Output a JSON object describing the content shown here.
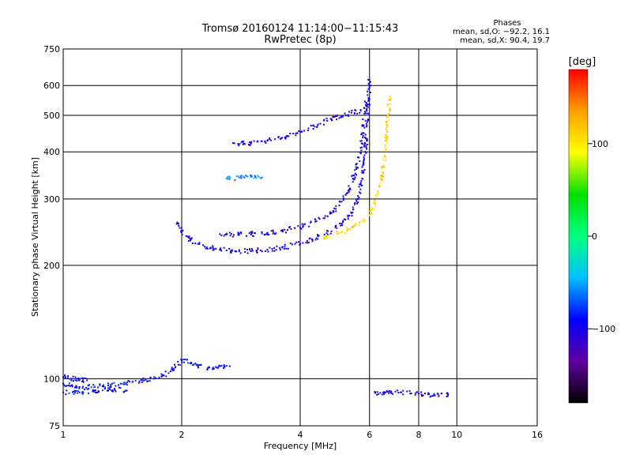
{
  "chart_data": {
    "type": "scatter",
    "title_line1": "Tromsø 20160124 11:14:00−11:15:43",
    "title_line2": "RwPretec (8p)",
    "xlabel": "Frequency [MHz]",
    "ylabel": "Stationary phase Virtual Height [km]",
    "x_scale": "log",
    "y_scale": "log",
    "xlim": [
      1,
      16
    ],
    "ylim": [
      75,
      750
    ],
    "x_ticks": [
      1,
      2,
      4,
      6,
      8,
      10,
      16
    ],
    "x_tick_labels": [
      "1",
      "2",
      "4",
      "6",
      "8",
      "10",
      "16"
    ],
    "y_ticks": [
      75,
      100,
      200,
      300,
      400,
      500,
      600,
      750
    ],
    "y_tick_labels": [
      "75",
      "100",
      "200",
      "300",
      "400",
      "500",
      "600",
      "750"
    ],
    "grid": true,
    "phase_box": {
      "title": "Phases",
      "line_o": "mean, sd,O: −92.2, 16.1",
      "line_x": "mean, sd,X:  90.4, 19.7"
    },
    "colorbar": {
      "label": "[deg]",
      "range": [
        -180,
        180
      ],
      "ticks": [
        100,
        0,
        -100
      ],
      "tick_labels": [
        "100",
        "0",
        "−100"
      ],
      "colors": [
        "#000000",
        "#6000a0",
        "#0000ff",
        "#00c0ff",
        "#00ff80",
        "#00e000",
        "#ffff00",
        "#ffa000",
        "#ff0000"
      ]
    },
    "series": [
      {
        "segment": "E trace",
        "phase": -90,
        "points": [
          [
            1.0,
            97
          ],
          [
            1.05,
            96
          ],
          [
            1.1,
            95
          ],
          [
            1.2,
            95
          ],
          [
            1.3,
            96
          ],
          [
            1.4,
            97
          ],
          [
            1.5,
            98
          ],
          [
            1.6,
            99
          ],
          [
            1.7,
            100
          ],
          [
            1.8,
            102
          ],
          [
            1.9,
            106
          ],
          [
            2.0,
            112
          ],
          [
            2.1,
            110
          ],
          [
            2.2,
            108
          ],
          [
            2.35,
            107
          ],
          [
            2.5,
            108
          ],
          [
            2.65,
            108
          ]
        ]
      },
      {
        "segment": "E lower trace",
        "phase": -90,
        "points": [
          [
            1.0,
            92
          ],
          [
            1.1,
            92
          ],
          [
            1.2,
            93
          ],
          [
            1.3,
            93
          ],
          [
            1.35,
            94
          ],
          [
            1.45,
            93
          ]
        ]
      },
      {
        "segment": "E upper trace",
        "phase": -90,
        "points": [
          [
            1.0,
            101
          ],
          [
            1.05,
            100
          ],
          [
            1.1,
            99
          ],
          [
            1.15,
            99
          ]
        ]
      },
      {
        "segment": "F trace O lower",
        "phase": -100,
        "points": [
          [
            1.95,
            260
          ],
          [
            2.0,
            245
          ],
          [
            2.1,
            235
          ],
          [
            2.2,
            228
          ],
          [
            2.4,
            222
          ],
          [
            2.6,
            219
          ],
          [
            2.8,
            218
          ],
          [
            3.0,
            218
          ],
          [
            3.3,
            220
          ],
          [
            3.6,
            223
          ],
          [
            4.0,
            228
          ],
          [
            4.4,
            236
          ],
          [
            4.8,
            246
          ],
          [
            5.1,
            258
          ],
          [
            5.4,
            275
          ],
          [
            5.6,
            300
          ],
          [
            5.75,
            340
          ],
          [
            5.85,
            400
          ],
          [
            5.92,
            480
          ],
          [
            5.97,
            550
          ],
          [
            6.0,
            620
          ]
        ]
      },
      {
        "segment": "F trace O upper",
        "phase": -100,
        "points": [
          [
            2.5,
            242
          ],
          [
            2.8,
            241
          ],
          [
            3.2,
            243
          ],
          [
            3.6,
            247
          ],
          [
            4.0,
            252
          ],
          [
            4.4,
            262
          ],
          [
            4.8,
            275
          ],
          [
            5.1,
            295
          ],
          [
            5.35,
            320
          ],
          [
            5.55,
            360
          ],
          [
            5.7,
            410
          ],
          [
            5.8,
            470
          ],
          [
            5.88,
            540
          ]
        ]
      },
      {
        "segment": "F trace X",
        "phase": 110,
        "points": [
          [
            4.6,
            238
          ],
          [
            5.0,
            243
          ],
          [
            5.4,
            252
          ],
          [
            5.8,
            265
          ],
          [
            6.1,
            282
          ],
          [
            6.3,
            310
          ],
          [
            6.45,
            345
          ],
          [
            6.55,
            390
          ],
          [
            6.62,
            440
          ],
          [
            6.68,
            500
          ],
          [
            6.75,
            560
          ]
        ]
      },
      {
        "segment": "F2 multiple",
        "phase": -100,
        "points": [
          [
            2.7,
            422
          ],
          [
            3.0,
            422
          ],
          [
            3.3,
            428
          ],
          [
            3.6,
            436
          ],
          [
            3.9,
            448
          ],
          [
            4.2,
            462
          ],
          [
            4.5,
            475
          ],
          [
            4.8,
            488
          ],
          [
            5.1,
            498
          ],
          [
            5.4,
            508
          ],
          [
            5.7,
            515
          ]
        ]
      },
      {
        "segment": "F multiple",
        "phase": -60,
        "points": [
          [
            2.6,
            340
          ],
          [
            2.8,
            342
          ],
          [
            3.0,
            343
          ],
          [
            3.2,
            342
          ]
        ]
      },
      {
        "segment": "Es trace",
        "phase": -100,
        "points": [
          [
            6.2,
            92
          ],
          [
            6.5,
            92
          ],
          [
            6.8,
            92
          ],
          [
            7.2,
            92
          ],
          [
            8.5,
            91
          ],
          [
            9.0,
            90
          ],
          [
            9.5,
            91
          ]
        ]
      }
    ]
  }
}
